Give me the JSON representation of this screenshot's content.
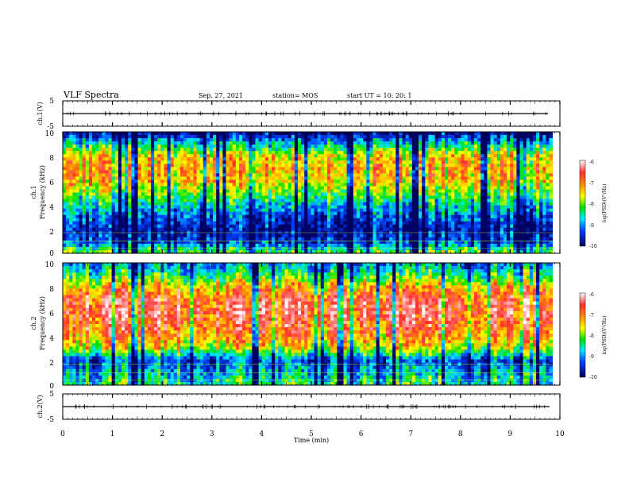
{
  "header": {
    "title": "VLF Spectra",
    "date": "Sep. 27, 2021",
    "station": "station= MOS",
    "start": "start  UT =    10: 20: 1"
  },
  "colors": {
    "colormap": [
      "#ffffff",
      "#ff3030",
      "#ff9a00",
      "#ffff00",
      "#00e000",
      "#00e8ff",
      "#0040ff",
      "#000060"
    ]
  },
  "chart_data": [
    {
      "type": "line",
      "name": "ch.1 waveform",
      "ylabel": "ch.1(V)",
      "ylim": [
        -5,
        5
      ],
      "yticks": [
        "5",
        "-5"
      ],
      "xlim": [
        0,
        10
      ],
      "series": [
        {
          "x": [
            0,
            10
          ],
          "values": [
            0,
            0
          ]
        }
      ]
    },
    {
      "type": "heatmap",
      "ylabel": "ch.1\nFrequency (kHz)",
      "ylim": [
        0,
        10
      ],
      "yticks": [
        "0",
        "2",
        "4",
        "6",
        "8",
        "10"
      ],
      "xlim": [
        0,
        9.85
      ],
      "colorbar": {
        "label": "log(PSD)(V²/Hz)",
        "range": [
          -10,
          -6
        ],
        "ticks": [
          "-6",
          "-7",
          "-8",
          "-9",
          "-10"
        ]
      },
      "profile_freq_khz": [
        0,
        1,
        2,
        3,
        4,
        5,
        6,
        7,
        8,
        9,
        10
      ],
      "profile_log_psd": [
        -8.2,
        -9.5,
        -9.8,
        -9.4,
        -8.8,
        -8.2,
        -7.6,
        -7.5,
        -7.7,
        -8.8,
        -10
      ]
    },
    {
      "type": "heatmap",
      "ylabel": "ch.2\nFrequency (kHz)",
      "ylim": [
        0,
        10
      ],
      "yticks": [
        "0",
        "2",
        "4",
        "6",
        "8",
        "10"
      ],
      "xlim": [
        0,
        9.85
      ],
      "colorbar": {
        "label": "log(PSD)(V²/Hz)",
        "range": [
          -10,
          -6
        ],
        "ticks": [
          "-6",
          "-7",
          "-8",
          "-9",
          "-10"
        ]
      },
      "profile_freq_khz": [
        0,
        1,
        2,
        3,
        4,
        5,
        6,
        7,
        8,
        9,
        10
      ],
      "profile_log_psd": [
        -8.4,
        -8.8,
        -9.3,
        -7.8,
        -7.2,
        -6.9,
        -6.7,
        -6.8,
        -7.4,
        -8.4,
        -9.0
      ]
    },
    {
      "type": "line",
      "name": "ch.2 waveform",
      "ylabel": "ch.2(V)",
      "ylim": [
        -5,
        5
      ],
      "yticks": [
        "5",
        "-5"
      ],
      "xlim": [
        0,
        10
      ],
      "series": [
        {
          "x": [
            0,
            10
          ],
          "values": [
            0,
            0
          ]
        }
      ]
    }
  ],
  "xaxis": {
    "label": "Time (min)",
    "ticks": [
      "0",
      "1",
      "2",
      "3",
      "4",
      "5",
      "6",
      "7",
      "8",
      "9",
      "10"
    ]
  }
}
